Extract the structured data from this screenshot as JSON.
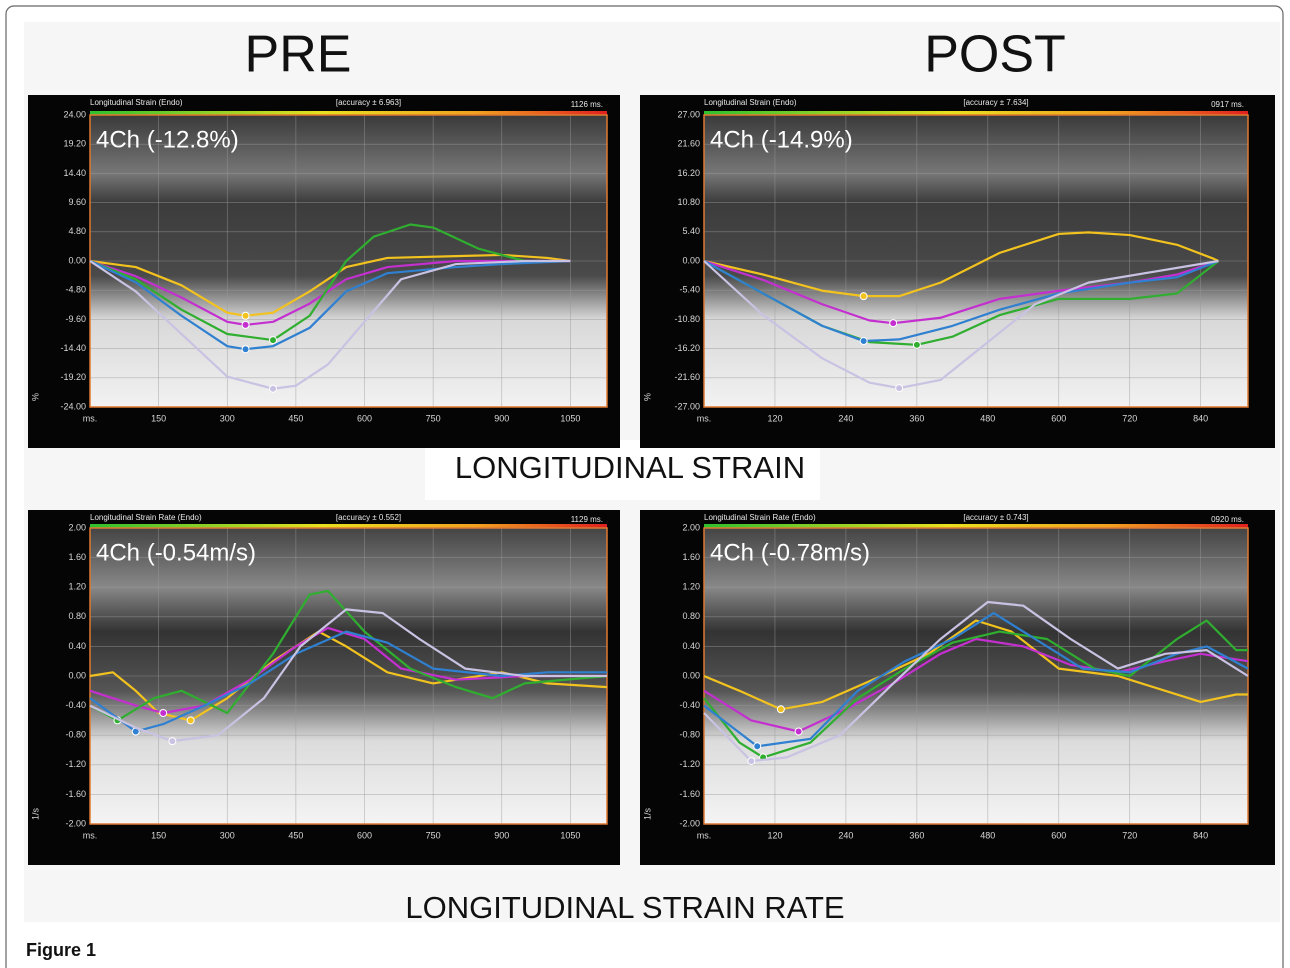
{
  "headings": {
    "pre": "PRE",
    "post": "POST"
  },
  "captions": [
    "LONGITUDINAL STRAIN",
    "LONGITUDINAL STRAIN RATE"
  ],
  "figure_label": "Figure 1",
  "chart_data": [
    {
      "type": "line",
      "title": "Longitudinal Strain (Endo)",
      "accuracy": "[accuracy ± 6.963]",
      "duration": "1126 ms.",
      "annotation": "4Ch (-12.8%)",
      "ylabel": "%",
      "xlim": [
        0,
        1130
      ],
      "ylim": [
        -24,
        24
      ],
      "grid": true,
      "xticks": [
        {
          "value": 0,
          "label": "ms."
        },
        150,
        300,
        450,
        600,
        750,
        900,
        1050
      ],
      "yticks": [
        {
          "value": 24,
          "label": "24.00"
        },
        {
          "value": 19.2,
          "label": "19.20"
        },
        {
          "value": 14.4,
          "label": "14.40"
        },
        {
          "value": 9.6,
          "label": "9.60"
        },
        {
          "value": 4.8,
          "label": "4.80"
        },
        {
          "value": 0,
          "label": "0.00"
        },
        {
          "value": -4.8,
          "label": "-4.80"
        },
        {
          "value": -9.6,
          "label": "-9.60"
        },
        {
          "value": -14.4,
          "label": "-14.40"
        },
        {
          "value": -19.2,
          "label": "-19.20"
        },
        {
          "value": -24,
          "label": "-24.00"
        }
      ],
      "series": [
        {
          "color": "#f2c21f",
          "x": [
            0,
            100,
            200,
            300,
            340,
            400,
            480,
            560,
            650,
            800,
            900,
            1000,
            1050
          ],
          "values": [
            0,
            -1,
            -4,
            -8.5,
            -9,
            -8.5,
            -5,
            -1,
            0.5,
            0.8,
            1,
            0.5,
            0
          ]
        },
        {
          "color": "#c42fd0",
          "x": [
            0,
            100,
            200,
            300,
            340,
            400,
            480,
            560,
            650,
            800,
            900,
            1050
          ],
          "values": [
            0,
            -2.5,
            -6,
            -10,
            -10.5,
            -10,
            -7,
            -3,
            -1,
            0,
            0,
            0
          ]
        },
        {
          "color": "#2fae2f",
          "x": [
            0,
            100,
            200,
            300,
            400,
            480,
            560,
            620,
            700,
            750,
            850,
            950
          ],
          "values": [
            0,
            -3,
            -8,
            -12,
            -13,
            -9,
            0,
            4,
            6,
            5.5,
            2,
            0
          ]
        },
        {
          "color": "#2f80d0",
          "x": [
            0,
            100,
            200,
            300,
            340,
            400,
            480,
            560,
            650,
            800,
            900,
            1050
          ],
          "values": [
            0,
            -3.5,
            -9,
            -14,
            -14.5,
            -14,
            -11,
            -5,
            -2,
            -1,
            -0.5,
            0
          ]
        },
        {
          "color": "#c9c2e2",
          "x": [
            0,
            100,
            200,
            300,
            400,
            450,
            520,
            600,
            680,
            800,
            950,
            1050
          ],
          "values": [
            0,
            -5,
            -12,
            -19,
            -21,
            -20.5,
            -17,
            -10,
            -3,
            -0.5,
            0,
            0
          ]
        }
      ]
    },
    {
      "type": "line",
      "title": "Longitudinal Strain (Endo)",
      "accuracy": "[accuracy ± 7.634]",
      "duration": "0917 ms.",
      "annotation": "4Ch (-14.9%)",
      "ylabel": "%",
      "xlim": [
        0,
        920
      ],
      "ylim": [
        -27,
        27
      ],
      "grid": true,
      "xticks": [
        {
          "value": 0,
          "label": "ms."
        },
        120,
        240,
        360,
        480,
        600,
        720,
        840
      ],
      "yticks": [
        {
          "value": 27,
          "label": "27.00"
        },
        {
          "value": 21.6,
          "label": "21.60"
        },
        {
          "value": 16.2,
          "label": "16.20"
        },
        {
          "value": 10.8,
          "label": "10.80"
        },
        {
          "value": 5.4,
          "label": "5.40"
        },
        {
          "value": 0,
          "label": "0.00"
        },
        {
          "value": -5.4,
          "label": "-5.40"
        },
        {
          "value": -10.8,
          "label": "-10.80"
        },
        {
          "value": -16.2,
          "label": "-16.20"
        },
        {
          "value": -21.6,
          "label": "-21.60"
        },
        {
          "value": -27,
          "label": "-27.00"
        }
      ],
      "series": [
        {
          "color": "#f2c21f",
          "x": [
            0,
            100,
            200,
            270,
            330,
            400,
            500,
            600,
            650,
            720,
            800,
            860,
            870
          ],
          "values": [
            0,
            -2.5,
            -5.5,
            -6.5,
            -6.5,
            -4,
            1.5,
            5,
            5.3,
            4.8,
            3,
            0.5,
            0
          ]
        },
        {
          "color": "#c42fd0",
          "x": [
            0,
            100,
            200,
            280,
            320,
            400,
            500,
            600,
            720,
            800,
            870
          ],
          "values": [
            0,
            -3.5,
            -8,
            -11,
            -11.5,
            -10.5,
            -7,
            -5.5,
            -4,
            -2.5,
            0
          ]
        },
        {
          "color": "#2fae2f",
          "x": [
            0,
            100,
            200,
            280,
            360,
            420,
            500,
            600,
            720,
            800,
            870
          ],
          "values": [
            0,
            -6,
            -12,
            -15,
            -15.5,
            -14,
            -10,
            -7,
            -7,
            -6,
            0
          ]
        },
        {
          "color": "#2f80d0",
          "x": [
            0,
            100,
            200,
            270,
            330,
            420,
            500,
            600,
            720,
            800,
            870
          ],
          "values": [
            0,
            -6,
            -12,
            -14.8,
            -14.5,
            -12,
            -9,
            -6,
            -4,
            -3,
            0
          ]
        },
        {
          "color": "#c9c2e2",
          "x": [
            0,
            100,
            200,
            280,
            330,
            400,
            480,
            560,
            650,
            760,
            870
          ],
          "values": [
            0,
            -10,
            -18,
            -22.5,
            -23.5,
            -22,
            -15,
            -8,
            -4,
            -2,
            0
          ]
        }
      ]
    },
    {
      "type": "line",
      "title": "Longitudinal Strain Rate (Endo)",
      "accuracy": "[accuracy ± 0.552]",
      "duration": "1129 ms.",
      "annotation": "4Ch (-0.54m/s)",
      "ylabel": "1/s",
      "xlim": [
        0,
        1130
      ],
      "ylim": [
        -2,
        2
      ],
      "grid": true,
      "xticks": [
        {
          "value": 0,
          "label": "ms."
        },
        150,
        300,
        450,
        600,
        750,
        900,
        1050
      ],
      "yticks": [
        {
          "value": 2,
          "label": "2.00"
        },
        {
          "value": 1.6,
          "label": "1.60"
        },
        {
          "value": 1.2,
          "label": "1.20"
        },
        {
          "value": 0.8,
          "label": "0.80"
        },
        {
          "value": 0.4,
          "label": "0.40"
        },
        {
          "value": 0,
          "label": "0.00"
        },
        {
          "value": -0.4,
          "label": "-0.40"
        },
        {
          "value": -0.8,
          "label": "-0.80"
        },
        {
          "value": -1.2,
          "label": "-1.20"
        },
        {
          "value": -1.6,
          "label": "-1.60"
        },
        {
          "value": -2,
          "label": "-2.00"
        }
      ],
      "series": [
        {
          "color": "#f2c21f",
          "x": [
            0,
            50,
            100,
            150,
            220,
            300,
            400,
            500,
            560,
            650,
            750,
            900,
            1000,
            1130
          ],
          "values": [
            0,
            0.05,
            -0.2,
            -0.5,
            -0.6,
            -0.3,
            0.2,
            0.6,
            0.4,
            0.05,
            -0.1,
            0.05,
            -0.1,
            -0.15
          ]
        },
        {
          "color": "#c42fd0",
          "x": [
            0,
            100,
            160,
            250,
            350,
            450,
            520,
            600,
            680,
            800,
            950,
            1130
          ],
          "values": [
            -0.2,
            -0.4,
            -0.5,
            -0.4,
            -0.05,
            0.4,
            0.65,
            0.5,
            0.1,
            -0.05,
            0,
            0
          ]
        },
        {
          "color": "#2fae2f",
          "x": [
            0,
            60,
            140,
            200,
            300,
            400,
            480,
            520,
            600,
            700,
            800,
            880,
            950,
            1130
          ],
          "values": [
            -0.4,
            -0.6,
            -0.3,
            -0.2,
            -0.5,
            0.3,
            1.1,
            1.15,
            0.6,
            0.1,
            -0.15,
            -0.3,
            -0.1,
            0
          ]
        },
        {
          "color": "#2f80d0",
          "x": [
            0,
            100,
            160,
            250,
            350,
            450,
            560,
            650,
            750,
            900,
            1000,
            1130
          ],
          "values": [
            -0.3,
            -0.75,
            -0.65,
            -0.4,
            -0.1,
            0.3,
            0.6,
            0.45,
            0.1,
            0,
            0.05,
            0.05
          ]
        },
        {
          "color": "#c9c2e2",
          "x": [
            0,
            100,
            180,
            280,
            380,
            460,
            560,
            640,
            720,
            820,
            950,
            1130
          ],
          "values": [
            -0.4,
            -0.7,
            -0.88,
            -0.8,
            -0.3,
            0.4,
            0.9,
            0.85,
            0.5,
            0.1,
            0,
            0
          ]
        }
      ]
    },
    {
      "type": "line",
      "title": "Longitudinal Strain Rate (Endo)",
      "accuracy": "[accuracy ± 0.743]",
      "duration": "0920 ms.",
      "annotation": "4Ch (-0.78m/s)",
      "ylabel": "1/s",
      "xlim": [
        0,
        920
      ],
      "ylim": [
        -2,
        2
      ],
      "grid": true,
      "xticks": [
        {
          "value": 0,
          "label": "ms."
        },
        120,
        240,
        360,
        480,
        600,
        720,
        840
      ],
      "yticks": [
        {
          "value": 2,
          "label": "2.00"
        },
        {
          "value": 1.6,
          "label": "1.60"
        },
        {
          "value": 1.2,
          "label": "1.20"
        },
        {
          "value": 0.8,
          "label": "0.80"
        },
        {
          "value": 0.4,
          "label": "0.40"
        },
        {
          "value": 0,
          "label": "0.00"
        },
        {
          "value": -0.4,
          "label": "-0.40"
        },
        {
          "value": -0.8,
          "label": "-0.80"
        },
        {
          "value": -1.2,
          "label": "-1.20"
        },
        {
          "value": -1.6,
          "label": "-1.60"
        },
        {
          "value": -2,
          "label": "-2.00"
        }
      ],
      "series": [
        {
          "color": "#f2c21f",
          "x": [
            0,
            60,
            130,
            200,
            300,
            380,
            460,
            520,
            600,
            700,
            780,
            840,
            900,
            920
          ],
          "values": [
            0,
            -0.2,
            -0.45,
            -0.35,
            0,
            0.3,
            0.75,
            0.6,
            0.1,
            0,
            -0.2,
            -0.35,
            -0.25,
            -0.25
          ]
        },
        {
          "color": "#c42fd0",
          "x": [
            0,
            80,
            160,
            240,
            320,
            400,
            460,
            540,
            620,
            700,
            780,
            840,
            920
          ],
          "values": [
            -0.2,
            -0.6,
            -0.75,
            -0.45,
            -0.1,
            0.3,
            0.5,
            0.4,
            0.15,
            0.05,
            0.2,
            0.3,
            0.2
          ]
        },
        {
          "color": "#2fae2f",
          "x": [
            0,
            60,
            100,
            180,
            260,
            340,
            420,
            500,
            580,
            660,
            720,
            800,
            850,
            900,
            920
          ],
          "values": [
            -0.3,
            -0.9,
            -1.1,
            -0.9,
            -0.3,
            0.1,
            0.45,
            0.6,
            0.5,
            0.1,
            0,
            0.5,
            0.75,
            0.35,
            0.35
          ]
        },
        {
          "color": "#2f80d0",
          "x": [
            0,
            90,
            180,
            260,
            340,
            420,
            490,
            560,
            640,
            720,
            800,
            850,
            920
          ],
          "values": [
            -0.4,
            -0.95,
            -0.85,
            -0.2,
            0.2,
            0.5,
            0.85,
            0.5,
            0.1,
            0.05,
            0.3,
            0.4,
            0.1
          ]
        },
        {
          "color": "#c9c2e2",
          "x": [
            0,
            80,
            140,
            230,
            320,
            400,
            480,
            540,
            620,
            700,
            780,
            850,
            920
          ],
          "values": [
            -0.5,
            -1.15,
            -1.1,
            -0.8,
            -0.1,
            0.5,
            1,
            0.95,
            0.5,
            0.1,
            0.3,
            0.35,
            0
          ]
        }
      ]
    }
  ]
}
